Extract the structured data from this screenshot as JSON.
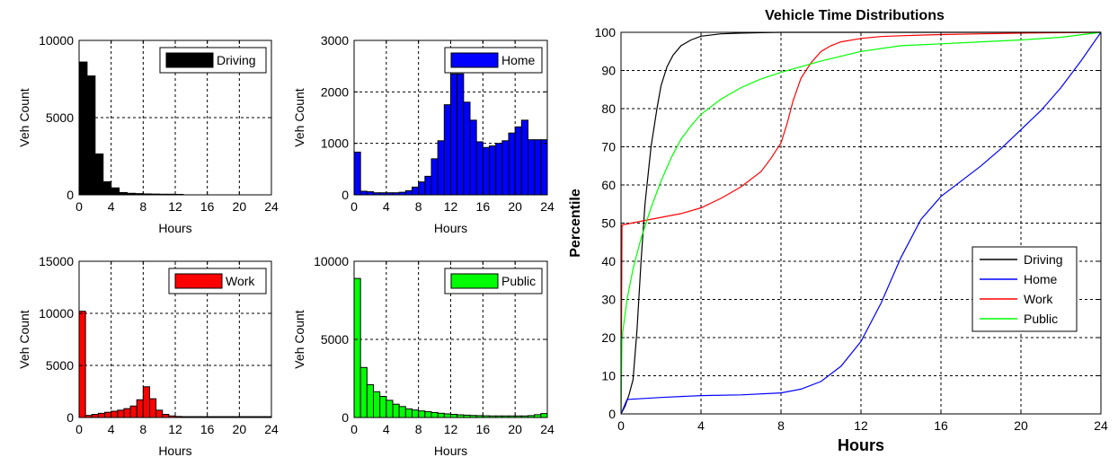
{
  "chart_data": [
    {
      "type": "bar",
      "legend": "Driving",
      "legend_placement": "top-right",
      "color": "#000000",
      "xlabel": "Hours",
      "ylabel": "Veh Count",
      "xlim": [
        0,
        24
      ],
      "ylim": [
        0,
        10000
      ],
      "xticks": [
        0,
        4,
        8,
        12,
        16,
        20,
        24
      ],
      "yticks": [
        0,
        5000,
        10000
      ],
      "grid": true,
      "bin_width": 1,
      "x": [
        0.5,
        1.5,
        2.5,
        3.5,
        4.5,
        5.5,
        6.5,
        7.5,
        8.5,
        9.5,
        10.5,
        11.5,
        12.5,
        13.5,
        14.5,
        15.5,
        16.5,
        17.5,
        18.5,
        19.5,
        20.5,
        21.5,
        22.5,
        23.5
      ],
      "values": [
        8600,
        7700,
        2650,
        850,
        450,
        150,
        100,
        80,
        60,
        50,
        40,
        40,
        30,
        0,
        0,
        0,
        0,
        0,
        0,
        0,
        0,
        0,
        0,
        0
      ]
    },
    {
      "type": "bar",
      "legend": "Home",
      "legend_placement": "top-right",
      "color": "#0000ff",
      "xlabel": "Hours",
      "ylabel": "Veh Count",
      "xlim": [
        0,
        24
      ],
      "ylim": [
        0,
        3000
      ],
      "xticks": [
        0,
        4,
        8,
        12,
        16,
        20,
        24
      ],
      "yticks": [
        0,
        1000,
        2000,
        3000
      ],
      "grid": true,
      "bin_width": 0.8,
      "x": [
        0.4,
        1.2,
        2.0,
        2.8,
        3.6,
        4.4,
        5.2,
        6.0,
        6.8,
        7.6,
        8.4,
        9.2,
        10.0,
        10.8,
        11.6,
        12.4,
        13.2,
        14.0,
        14.8,
        15.6,
        16.4,
        17.2,
        18.0,
        18.8,
        19.6,
        20.4,
        21.2,
        22.0,
        22.8,
        23.6
      ],
      "values": [
        830,
        70,
        60,
        40,
        40,
        40,
        40,
        50,
        80,
        150,
        250,
        360,
        700,
        1050,
        1750,
        2350,
        2350,
        1800,
        1450,
        1030,
        920,
        950,
        1000,
        1050,
        1200,
        1320,
        1450,
        1070,
        1070,
        1070
      ]
    },
    {
      "type": "bar",
      "legend": "Work",
      "legend_placement": "top-right",
      "color": "#ff0000",
      "xlabel": "Hours",
      "ylabel": "Veh Count",
      "xlim": [
        0,
        24
      ],
      "ylim": [
        0,
        15000
      ],
      "xticks": [
        0,
        4,
        8,
        12,
        16,
        20,
        24
      ],
      "yticks": [
        0,
        5000,
        10000,
        15000
      ],
      "grid": true,
      "bin_width": 0.8,
      "x": [
        0.4,
        1.2,
        2.0,
        2.8,
        3.6,
        4.4,
        5.2,
        6.0,
        6.8,
        7.6,
        8.4,
        9.2,
        10.0,
        10.8,
        11.6,
        12.4,
        13.2,
        14.0,
        14.8,
        15.6,
        16.4,
        17.2,
        18.0,
        18.8,
        19.6,
        20.4,
        21.2,
        22.0,
        22.8,
        23.6
      ],
      "values": [
        10200,
        200,
        300,
        400,
        500,
        600,
        700,
        850,
        1100,
        1700,
        2950,
        1800,
        700,
        300,
        150,
        100,
        80,
        80,
        80,
        80,
        80,
        80,
        80,
        80,
        80,
        80,
        80,
        80,
        80,
        80
      ]
    },
    {
      "type": "bar",
      "legend": "Public",
      "legend_placement": "top-right",
      "color": "#00ff00",
      "xlabel": "Hours",
      "ylabel": "Veh Count",
      "xlim": [
        0,
        24
      ],
      "ylim": [
        0,
        10000
      ],
      "xticks": [
        0,
        4,
        8,
        12,
        16,
        20,
        24
      ],
      "yticks": [
        0,
        5000,
        10000
      ],
      "grid": true,
      "bin_width": 0.8,
      "x": [
        0.4,
        1.2,
        2.0,
        2.8,
        3.6,
        4.4,
        5.2,
        6.0,
        6.8,
        7.6,
        8.4,
        9.2,
        10.0,
        10.8,
        11.6,
        12.4,
        13.2,
        14.0,
        14.8,
        15.6,
        16.4,
        17.2,
        18.0,
        18.8,
        19.6,
        20.4,
        21.2,
        22.0,
        22.8,
        23.6
      ],
      "values": [
        8900,
        3200,
        2100,
        1650,
        1350,
        1100,
        850,
        700,
        550,
        480,
        420,
        370,
        320,
        270,
        230,
        200,
        170,
        150,
        130,
        120,
        110,
        100,
        100,
        100,
        100,
        100,
        100,
        120,
        180,
        250
      ]
    },
    {
      "type": "line",
      "title": "Vehicle Time Distributions",
      "xlabel": "Hours",
      "ylabel": "Percentile",
      "xlim": [
        0,
        24
      ],
      "ylim": [
        0,
        100
      ],
      "xticks": [
        0,
        4,
        8,
        12,
        16,
        20,
        24
      ],
      "yticks": [
        0,
        10,
        20,
        30,
        40,
        50,
        60,
        70,
        80,
        90,
        100
      ],
      "grid": true,
      "legend_placement": "center-right",
      "series": [
        {
          "name": "Driving",
          "color": "#000000",
          "x": [
            0,
            0.2,
            0.4,
            0.6,
            0.8,
            1.0,
            1.2,
            1.5,
            1.8,
            2.0,
            2.3,
            2.6,
            3.0,
            3.5,
            4.0,
            5.0,
            6.0,
            7.0,
            8.0,
            12.0,
            24.0
          ],
          "y": [
            0,
            2,
            5,
            9,
            22,
            40,
            55,
            70,
            80,
            86,
            91,
            94,
            96.5,
            98,
            99,
            99.6,
            99.8,
            99.9,
            100,
            100,
            100
          ]
        },
        {
          "name": "Home",
          "color": "#0000ff",
          "x": [
            0,
            0.3,
            2,
            4,
            6,
            8,
            9,
            10,
            11,
            12,
            13,
            14,
            15,
            16,
            17,
            18,
            19,
            20,
            21,
            22,
            23,
            24
          ],
          "y": [
            0,
            3.8,
            4.3,
            4.8,
            5.0,
            5.5,
            6.5,
            8.5,
            12.5,
            19,
            29,
            41,
            51,
            57,
            61,
            65,
            69.5,
            74.5,
            79.5,
            85.5,
            92.5,
            100
          ]
        },
        {
          "name": "Work",
          "color": "#ff0000",
          "x": [
            0,
            0.05,
            1,
            2,
            3,
            4,
            5,
            6,
            7,
            7.5,
            8,
            8.3,
            8.6,
            9,
            9.5,
            10,
            10.5,
            11,
            12,
            13,
            14,
            16,
            18,
            20,
            22,
            24
          ],
          "y": [
            0,
            49.5,
            50.5,
            51.5,
            52.5,
            54,
            56.5,
            59.5,
            63.5,
            67,
            71,
            76,
            82,
            88,
            92,
            95,
            96.5,
            97.5,
            98.4,
            98.9,
            99.1,
            99.4,
            99.6,
            99.8,
            99.9,
            100
          ]
        },
        {
          "name": "Public",
          "color": "#00ff00",
          "x": [
            0,
            0.05,
            0.3,
            0.6,
            1,
            1.5,
            2,
            2.5,
            3,
            3.5,
            4,
            5,
            6,
            7,
            8,
            9,
            10,
            12,
            14,
            16,
            18,
            20,
            22,
            24
          ],
          "y": [
            0,
            20,
            30,
            38,
            46,
            54,
            61,
            67,
            72,
            75.5,
            78.5,
            82.5,
            85.5,
            87.8,
            89.5,
            91,
            92.5,
            95,
            96.5,
            97,
            97.5,
            98,
            98.7,
            100
          ]
        }
      ]
    }
  ]
}
